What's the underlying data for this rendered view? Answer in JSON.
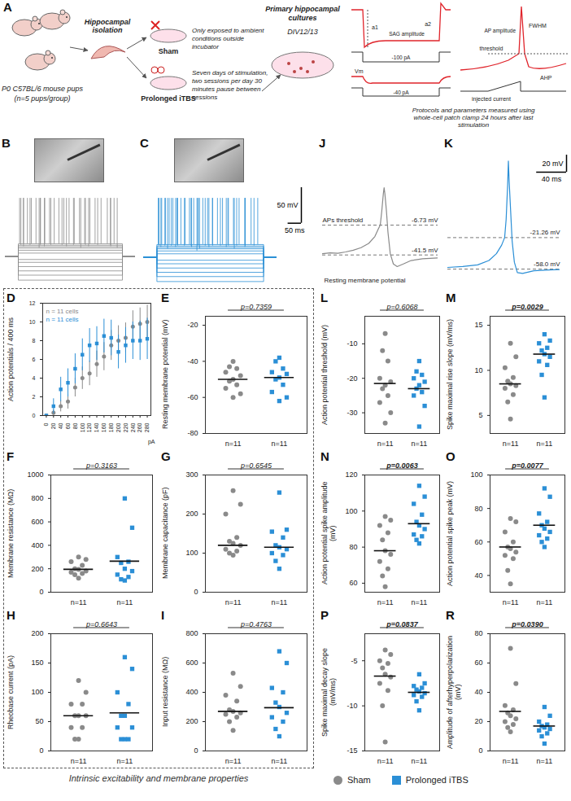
{
  "diagram_A": {
    "panel": "A",
    "mice_label": "P0 C57BL/6 mouse pups",
    "mice_n": "(n=5 pups/group)",
    "isolation": "Hippocampal isolation",
    "sham": "Sham",
    "sham_note": "Only exposed to ambient conditions outside incubator",
    "itbs": "Prolonged iTBS",
    "itbs_note": "Seven days of stimulation, two sessions per day 30 minutes pause between sessions",
    "culture": "Primary hippocampal cultures",
    "div": "DIV12/13",
    "protocol_note": "Protocols and parameters measured using whole-cell patch clamp 24 hours after last stimulation",
    "trace_labels": {
      "a1": "a1",
      "a2": "a2",
      "sag": "SAG amplitude",
      "step1": "-100 pA",
      "vm": "Vm",
      "step2": "-40 pA",
      "ap_amp": "AP amplitude",
      "fwhm": "FWHM",
      "threshold": "threshold",
      "ahp": "AHP",
      "injected": "injected current"
    }
  },
  "groups": [
    {
      "name": "Sham",
      "color": "#8a8a8a",
      "marker": "circle"
    },
    {
      "name": "Prolonged iTBS",
      "color": "#2b8fd6",
      "marker": "square"
    }
  ],
  "box_caption": "Intrinsic excitability and membrane properties",
  "chart_data": [
    {
      "panel": "B",
      "type": "trace_family",
      "color": "#8a8a8a",
      "xlim": [
        0,
        500
      ],
      "ylim": [
        -95,
        40
      ],
      "baseline": -57,
      "step": [
        50,
        450
      ],
      "spike_peak": 25,
      "sweeps": [
        {
          "steady": -90,
          "spikes": []
        },
        {
          "steady": -83,
          "spikes": []
        },
        {
          "steady": -77,
          "spikes": []
        },
        {
          "steady": -71,
          "spikes": []
        },
        {
          "steady": -65,
          "spikes": []
        },
        {
          "steady": -61,
          "spikes": []
        },
        {
          "steady": -52,
          "spikes": []
        },
        {
          "steady": -48,
          "spikes": []
        },
        {
          "steady": -45,
          "spikes": [
            130,
            290,
            430
          ]
        },
        {
          "steady": -43,
          "spikes": [
            70,
            150,
            235,
            320,
            405
          ]
        },
        {
          "steady": -41,
          "spikes": [
            60,
            95,
            135,
            175,
            218,
            262,
            308,
            355,
            404
          ]
        },
        {
          "steady": -39,
          "spikes": [
            55,
            70,
            85,
            100,
            118,
            135,
            152,
            170,
            188,
            206,
            225,
            245,
            265,
            285,
            305,
            325,
            345,
            368,
            392,
            418
          ]
        }
      ]
    },
    {
      "panel": "C",
      "type": "trace_family",
      "color": "#2b8fd6",
      "xlim": [
        0,
        500
      ],
      "ylim": [
        -95,
        40
      ],
      "baseline": -58,
      "step": [
        50,
        450
      ],
      "spike_peak": 25,
      "sweeps": [
        {
          "steady": -92,
          "spikes": []
        },
        {
          "steady": -85,
          "spikes": []
        },
        {
          "steady": -79,
          "spikes": []
        },
        {
          "steady": -73,
          "spikes": []
        },
        {
          "steady": -67,
          "spikes": []
        },
        {
          "steady": -62,
          "spikes": []
        },
        {
          "steady": -53,
          "spikes": []
        },
        {
          "steady": -49,
          "spikes": [
            200
          ]
        },
        {
          "steady": -46,
          "spikes": [
            90,
            210,
            340
          ]
        },
        {
          "steady": -44,
          "spikes": [
            65,
            120,
            180,
            245,
            310,
            380
          ]
        },
        {
          "steady": -42,
          "spikes": [
            58,
            80,
            104,
            128,
            153,
            178,
            204,
            231,
            259,
            288,
            318,
            349,
            381,
            414
          ]
        },
        {
          "steady": -40,
          "spikes": [
            55,
            68,
            82,
            96,
            110,
            125,
            140,
            156,
            172,
            188,
            205,
            222,
            240,
            258,
            277,
            296,
            316,
            337,
            358,
            380,
            403,
            428
          ]
        }
      ],
      "scale_bars": [
        {
          "axis": "y",
          "value": 50,
          "label": "50 mV"
        },
        {
          "axis": "x",
          "value": 50,
          "label": "50 ms"
        }
      ]
    },
    {
      "panel": "J",
      "type": "line",
      "color": "#8a8a8a",
      "xlim": [
        0,
        150
      ],
      "ylim": [
        -75,
        75
      ],
      "x": [
        0,
        10,
        20,
        30,
        40,
        50,
        60,
        68,
        72,
        75,
        77,
        79,
        80,
        81,
        83,
        85,
        88,
        92,
        97,
        105,
        115,
        130,
        150
      ],
      "values": [
        -40,
        -39,
        -39.5,
        -38,
        -36,
        -33,
        -28,
        -20,
        -12,
        -6.73,
        10,
        30,
        37,
        30,
        10,
        -15,
        -40,
        -52,
        -55,
        -52,
        -48,
        -46,
        -45
      ],
      "threshold": {
        "value": -6.73,
        "label": "-6.73 mV"
      },
      "resting": {
        "value": -41.5,
        "label": "-41.5 mV"
      },
      "threshold_text": "APs threshold",
      "resting_text": "Resting membrane potential"
    },
    {
      "panel": "K",
      "type": "line",
      "color": "#2b8fd6",
      "xlim": [
        0,
        150
      ],
      "ylim": [
        -75,
        75
      ],
      "x": [
        0,
        20,
        40,
        55,
        65,
        72,
        76,
        78,
        80,
        81,
        82,
        84,
        86,
        89,
        93,
        100,
        115,
        135,
        150
      ],
      "values": [
        -56,
        -55,
        -53,
        -48,
        -40,
        -30,
        -21.26,
        0,
        40,
        68,
        45,
        10,
        -25,
        -50,
        -62,
        -63,
        -60,
        -59,
        -58.5
      ],
      "threshold": {
        "value": -21.26,
        "label": "-21.26 mV"
      },
      "resting": {
        "value": -58.0,
        "label": "-58.0 mV"
      },
      "scale_bars": [
        {
          "axis": "y",
          "value": 20,
          "label": "20 mV"
        },
        {
          "axis": "x",
          "value": 40,
          "label": "40 ms"
        }
      ]
    },
    {
      "panel": "D",
      "type": "scatter",
      "xlabel": "pA",
      "ylabel": "Action potentials / 400 ms",
      "xlim": [
        -10,
        290
      ],
      "xticks": [
        0,
        20,
        40,
        60,
        80,
        100,
        120,
        140,
        160,
        180,
        200,
        220,
        240,
        260,
        280
      ],
      "ylim": [
        0,
        12
      ],
      "yticks": [
        0,
        2,
        4,
        6,
        8,
        10,
        12
      ],
      "x": [
        0,
        20,
        40,
        60,
        80,
        100,
        120,
        140,
        160,
        180,
        200,
        220,
        240,
        260,
        280
      ],
      "series": [
        {
          "name": "n = 11 cells",
          "color": "#8a8a8a",
          "marker": "circle",
          "values": [
            0,
            0.3,
            1,
            1.5,
            3,
            4,
            4.5,
            5.5,
            6.3,
            7.5,
            8,
            8.3,
            9.5,
            9.8,
            10
          ],
          "errors": [
            0,
            0.3,
            0.6,
            0.8,
            1,
            1.2,
            1.3,
            1.4,
            1.5,
            1.6,
            1.6,
            1.6,
            1.7,
            1.7,
            1.8
          ]
        },
        {
          "name": "n = 11 cells",
          "color": "#2b8fd6",
          "marker": "square",
          "values": [
            0,
            1,
            2.8,
            3.5,
            5,
            6.5,
            7.5,
            7.7,
            8.5,
            8.3,
            6.8,
            7.5,
            8,
            8,
            8.2
          ],
          "errors": [
            0,
            0.8,
            1.3,
            1.5,
            1.6,
            1.7,
            1.8,
            1.8,
            1.8,
            1.9,
            1.8,
            1.9,
            2,
            2.1,
            2.2
          ]
        }
      ]
    },
    {
      "panel": "E",
      "type": "strip",
      "ylabel": "Resting membrane potential (mV)",
      "ylim": [
        -80,
        -15
      ],
      "yticks": [
        -80,
        -60,
        -40,
        -20
      ],
      "p": {
        "value": 0.7359,
        "label": "p=0.7359"
      },
      "x_labels": [
        "n=11",
        "n=11"
      ],
      "series": [
        {
          "values": [
            -40,
            -43,
            -44,
            -46,
            -48,
            -50,
            -51,
            -53,
            -55,
            -58,
            -60
          ],
          "center": -50
        },
        {
          "values": [
            -38,
            -40,
            -44,
            -46,
            -47,
            -49,
            -50,
            -53,
            -57,
            -60,
            -62
          ],
          "center": -49
        }
      ]
    },
    {
      "panel": "F",
      "type": "strip",
      "ylabel": "Membrane resistance (MΩ)",
      "ylim": [
        0,
        1000
      ],
      "yticks": [
        0,
        200,
        400,
        600,
        800,
        1000
      ],
      "p": {
        "value": 0.3163,
        "label": "p=0.3163"
      },
      "x_labels": [
        "n=11",
        "n=11"
      ],
      "series": [
        {
          "values": [
            120,
            150,
            160,
            170,
            180,
            195,
            200,
            230,
            260,
            280,
            300
          ],
          "center": 195
        },
        {
          "values": [
            100,
            110,
            130,
            150,
            180,
            200,
            250,
            260,
            300,
            550,
            800
          ],
          "center": 265
        }
      ]
    },
    {
      "panel": "G",
      "type": "strip",
      "ylabel": "Membrane capacitance (pF)",
      "ylim": [
        0,
        300
      ],
      "yticks": [
        0,
        100,
        200,
        300
      ],
      "p": {
        "value": 0.6545,
        "label": "p=0.6545"
      },
      "x_labels": [
        "n=11",
        "n=11"
      ],
      "series": [
        {
          "values": [
            95,
            100,
            105,
            110,
            120,
            125,
            130,
            140,
            200,
            225,
            260
          ],
          "center": 120
        },
        {
          "values": [
            60,
            80,
            95,
            100,
            110,
            115,
            120,
            140,
            155,
            160,
            255
          ],
          "center": 115
        }
      ]
    },
    {
      "panel": "H",
      "type": "strip",
      "ylabel": "Rheobase current (pA)",
      "ylim": [
        0,
        200
      ],
      "yticks": [
        0,
        50,
        100,
        150,
        200
      ],
      "p": {
        "value": 0.6643,
        "label": "p=0.6643"
      },
      "x_labels": [
        "n=11",
        "n=11"
      ],
      "series": [
        {
          "values": [
            20,
            20,
            40,
            40,
            60,
            60,
            60,
            80,
            80,
            100,
            120
          ],
          "center": 60
        },
        {
          "values": [
            20,
            20,
            20,
            40,
            40,
            60,
            60,
            80,
            100,
            140,
            160
          ],
          "center": 65
        }
      ]
    },
    {
      "panel": "I",
      "type": "strip",
      "ylabel": "Input resistance (MΩ)",
      "ylim": [
        0,
        800
      ],
      "yticks": [
        0,
        200,
        400,
        600,
        800
      ],
      "p": {
        "value": 0.4763,
        "label": "p=0.4763"
      },
      "x_labels": [
        "n=11",
        "n=11"
      ],
      "series": [
        {
          "values": [
            140,
            200,
            230,
            250,
            260,
            270,
            280,
            340,
            380,
            440,
            530
          ],
          "center": 270
        },
        {
          "values": [
            100,
            150,
            200,
            230,
            260,
            300,
            330,
            400,
            430,
            600,
            680
          ],
          "center": 295
        }
      ]
    },
    {
      "panel": "L",
      "type": "strip",
      "ylabel": "Action potential threshold (mV)",
      "ylim": [
        -36,
        -2
      ],
      "yticks": [
        -30,
        -20,
        -10
      ],
      "p": {
        "value": 0.6068,
        "label": "p=0.6068"
      },
      "x_labels": [
        "n=11",
        "n=11"
      ],
      "series": [
        {
          "values": [
            -7,
            -12,
            -15,
            -20,
            -21,
            -22,
            -23,
            -25,
            -27,
            -30,
            -33
          ],
          "center": -21.5
        },
        {
          "values": [
            -15,
            -18,
            -19,
            -20,
            -21,
            -22,
            -23,
            -24,
            -25,
            -28,
            -34
          ],
          "center": -23
        }
      ]
    },
    {
      "panel": "M",
      "type": "strip",
      "ylabel": "Spike maximal rise slope (mV/ms)",
      "ylim": [
        3,
        16
      ],
      "yticks": [
        5,
        10,
        15
      ],
      "p": {
        "value": 0.0029,
        "label": "p=0.0029"
      },
      "x_labels": [
        "n=11",
        "n=11"
      ],
      "series": [
        {
          "values": [
            4.6,
            6.5,
            7.3,
            8,
            8.3,
            8.5,
            8.8,
            9.2,
            10.3,
            11.5,
            13
          ],
          "center": 8.5
        },
        {
          "values": [
            7,
            9.5,
            10.6,
            11,
            11.5,
            11.8,
            12.2,
            12.5,
            13,
            13.3,
            14
          ],
          "center": 11.8
        }
      ]
    },
    {
      "panel": "N",
      "type": "strip",
      "ylabel": "Action potential spike amplitude (mV)",
      "ylim": [
        55,
        120
      ],
      "yticks": [
        60,
        80,
        100,
        120
      ],
      "p": {
        "value": 0.0063,
        "label": "p=0.0063"
      },
      "x_labels": [
        "n=11",
        "n=11"
      ],
      "series": [
        {
          "values": [
            58,
            64,
            68,
            72,
            76,
            78,
            84,
            88,
            92,
            95,
            97
          ],
          "center": 78
        },
        {
          "values": [
            82,
            84,
            86,
            87,
            90,
            92,
            94,
            98,
            104,
            108,
            114
          ],
          "center": 93
        }
      ]
    },
    {
      "panel": "O",
      "type": "strip",
      "ylabel": "Action potential spike peak (mV)",
      "ylim": [
        30,
        100
      ],
      "yticks": [
        40,
        60,
        80,
        100
      ],
      "p": {
        "value": 0.0077,
        "label": "p=0.0077"
      },
      "x_labels": [
        "n=11",
        "n=11"
      ],
      "series": [
        {
          "values": [
            35,
            43,
            50,
            52,
            54,
            56,
            57,
            60,
            66,
            72,
            74
          ],
          "center": 57
        },
        {
          "values": [
            57,
            60,
            62,
            64,
            66,
            68,
            70,
            72,
            77,
            87,
            92
          ],
          "center": 70
        }
      ]
    },
    {
      "panel": "P",
      "type": "strip",
      "ylabel": "Spike maximal decay slope (mV/ms)",
      "ylim": [
        -15,
        -2
      ],
      "yticks": [
        -15,
        -10,
        -5
      ],
      "p": {
        "value": 0.0837,
        "label": "p=0.0837"
      },
      "x_labels": [
        "n=11",
        "n=11"
      ],
      "series": [
        {
          "values": [
            -14,
            -10,
            -8.3,
            -7.5,
            -6.8,
            -6.5,
            -5.8,
            -5.3,
            -5,
            -4.3,
            -3.8
          ],
          "center": -6.7
        },
        {
          "values": [
            -10.5,
            -9.5,
            -9,
            -8.8,
            -8.6,
            -8.4,
            -8.2,
            -8,
            -7.8,
            -7.5,
            -6.5
          ],
          "center": -8.5
        }
      ]
    },
    {
      "panel": "R",
      "type": "strip",
      "ylabel": "Amplitude of afterhyperpolarization (mV)",
      "ylim": [
        0,
        80
      ],
      "yticks": [
        0,
        20,
        40,
        60,
        80
      ],
      "p": {
        "value": 0.039,
        "label": "p=0.0390"
      },
      "x_labels": [
        "n=11",
        "n=11"
      ],
      "series": [
        {
          "values": [
            13,
            16,
            18,
            20,
            22,
            24,
            26,
            28,
            31,
            46,
            70
          ],
          "center": 27
        },
        {
          "values": [
            5,
            10,
            12,
            14,
            15,
            16,
            17,
            18,
            20,
            24,
            30
          ],
          "center": 17
        }
      ]
    }
  ]
}
